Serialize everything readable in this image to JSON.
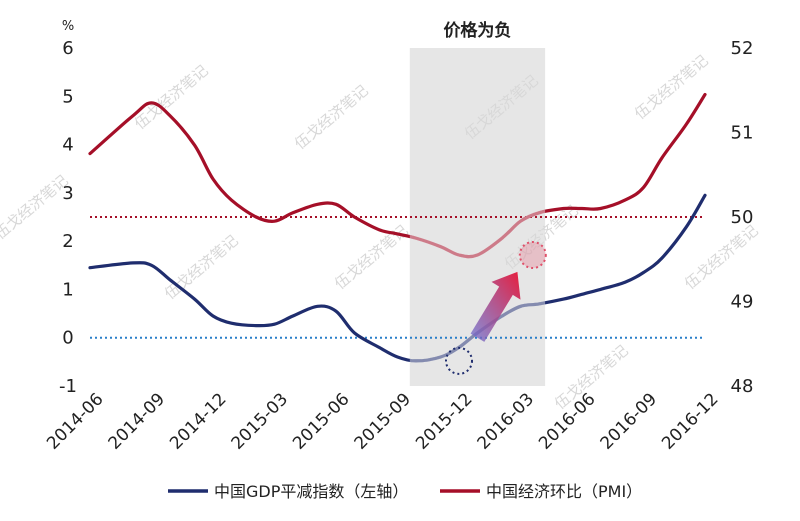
{
  "chart_data": {
    "type": "line",
    "title": "",
    "x": [
      "2014-06",
      "2014-09",
      "2014-12",
      "2015-03",
      "2015-06",
      "2015-09",
      "2015-12",
      "2016-03",
      "2016-06",
      "2016-09",
      "2016-12"
    ],
    "y_left": {
      "unit": "%",
      "range": [
        -1,
        6
      ],
      "ticks": [
        "-1",
        "0",
        "1",
        "2",
        "3",
        "4",
        "5",
        "6"
      ]
    },
    "y_right": {
      "range": [
        48,
        52
      ],
      "ticks": [
        "48",
        "49",
        "50",
        "51",
        "52"
      ]
    },
    "series": [
      {
        "name": "中国GDP平减指数（左轴）",
        "axis": "left",
        "color": "#1f2d6e",
        "x": [
          0,
          0.7,
          1.0,
          1.3,
          1.7,
          2.0,
          2.3,
          2.7,
          3.0,
          3.3,
          3.7,
          4.0,
          4.3,
          4.7,
          5.0,
          5.3,
          5.7,
          6.0,
          6.3,
          6.7,
          7.0,
          7.3,
          7.7,
          8.0,
          8.3,
          8.7,
          9.0,
          9.3,
          9.7,
          10.0
        ],
        "values": [
          1.45,
          1.55,
          1.5,
          1.2,
          0.8,
          0.45,
          0.3,
          0.25,
          0.28,
          0.45,
          0.65,
          0.55,
          0.1,
          -0.2,
          -0.4,
          -0.48,
          -0.4,
          -0.2,
          0.1,
          0.45,
          0.65,
          0.7,
          0.8,
          0.9,
          1.0,
          1.15,
          1.35,
          1.65,
          2.3,
          2.95
        ]
      },
      {
        "name": "中国经济环比（PMI）",
        "axis": "right",
        "color": "#a50f28",
        "x": [
          0,
          0.7,
          1.0,
          1.3,
          1.7,
          2.0,
          2.3,
          2.7,
          3.0,
          3.3,
          3.7,
          4.0,
          4.3,
          4.7,
          5.0,
          5.3,
          5.7,
          6.0,
          6.3,
          6.7,
          7.0,
          7.3,
          7.7,
          8.0,
          8.3,
          8.7,
          9.0,
          9.3,
          9.7,
          10.0
        ],
        "values": [
          50.75,
          51.2,
          51.35,
          51.2,
          50.85,
          50.45,
          50.2,
          50.0,
          49.95,
          50.05,
          50.15,
          50.15,
          50.0,
          49.85,
          49.8,
          49.75,
          49.65,
          49.55,
          49.55,
          49.75,
          49.95,
          50.05,
          50.1,
          50.1,
          50.1,
          50.2,
          50.35,
          50.7,
          51.1,
          51.45
        ]
      }
    ],
    "reference_lines": [
      {
        "axis": "right",
        "value": 50,
        "style": "dotted",
        "color": "#a50f28"
      },
      {
        "axis": "left",
        "value": 0,
        "style": "dotted",
        "color": "#2a7fc9"
      }
    ],
    "shaded_region": {
      "from": 5.2,
      "to": 7.4,
      "label": "价格为负",
      "color": "#e6e6e6"
    },
    "annotations": [
      {
        "type": "circle",
        "axis": "left",
        "x": 6.0,
        "y": -0.48,
        "color": "#1f2d6e"
      },
      {
        "type": "circle",
        "axis": "right",
        "x": 7.2,
        "y": 49.55,
        "color": "#e0506a"
      },
      {
        "type": "arrow",
        "from_axis": "left",
        "from": [
          6.3,
          0.0
        ],
        "to_axis": "right",
        "to": [
          6.95,
          49.35
        ]
      }
    ],
    "grid": false,
    "legend_position": "bottom"
  },
  "watermark": "伍戈经济笔记"
}
